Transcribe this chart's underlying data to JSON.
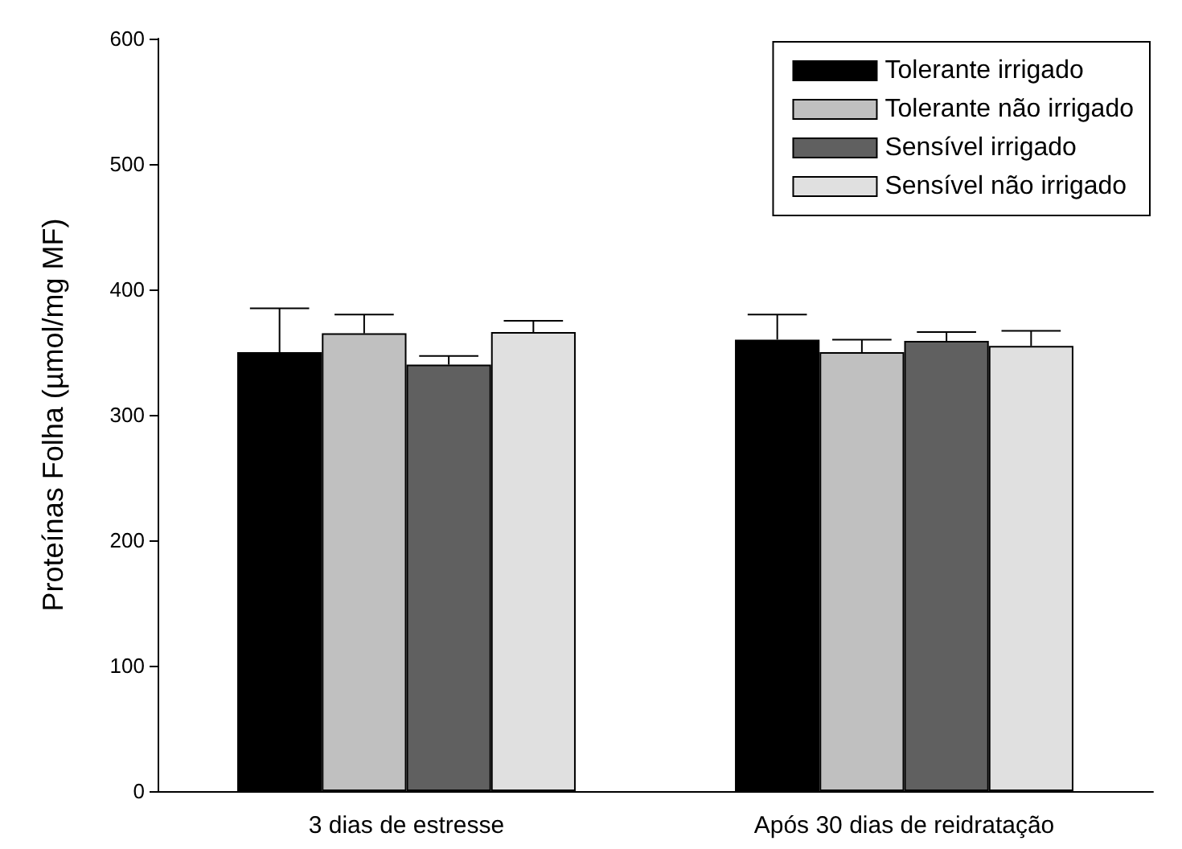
{
  "chart_data": {
    "type": "bar",
    "ylabel": "Proteínas Folha (µmol/mg MF)",
    "categories": [
      "3 dias de estresse",
      "Após 30 dias de reidratação"
    ],
    "series": [
      {
        "name": "Tolerante irrigado",
        "color": "#000000",
        "values": [
          350,
          360
        ],
        "errors": [
          [
            350,
            385
          ],
          [
            360,
            380
          ]
        ]
      },
      {
        "name": "Tolerante não irrigado",
        "color": "#c0c0c0",
        "values": [
          365,
          350
        ],
        "errors": [
          [
            365,
            380
          ],
          [
            350,
            360
          ]
        ]
      },
      {
        "name": "Sensível irrigado",
        "color": "#606060",
        "values": [
          340,
          359
        ],
        "errors": [
          [
            340,
            347
          ],
          [
            359,
            366
          ]
        ]
      },
      {
        "name": "Sensível não irrigado",
        "color": "#e0e0e0",
        "values": [
          366,
          355
        ],
        "errors": [
          [
            366,
            375
          ],
          [
            355,
            367
          ]
        ]
      }
    ],
    "ylim": [
      0,
      600
    ],
    "yticks": [
      0,
      100,
      200,
      300,
      400,
      500,
      600
    ],
    "grid": false,
    "legend": "top right"
  }
}
